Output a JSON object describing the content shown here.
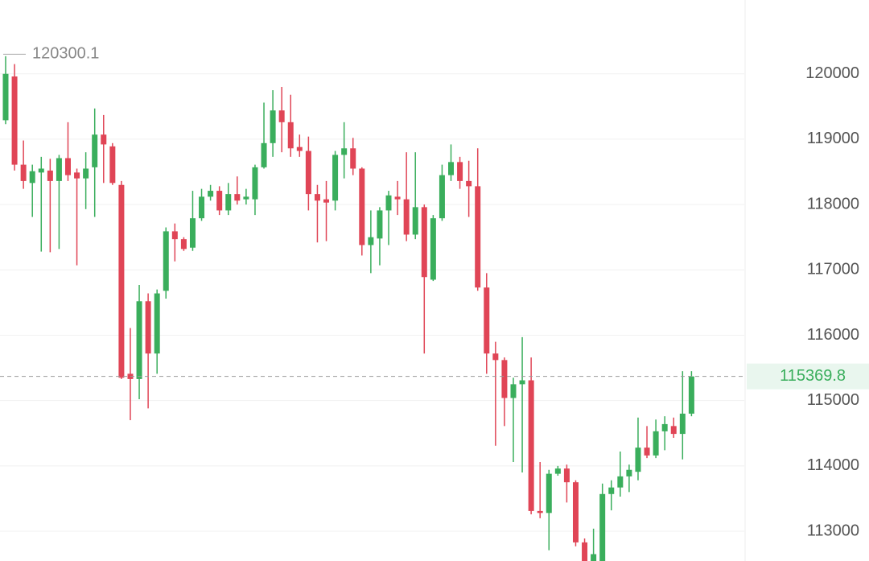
{
  "chart_data": {
    "type": "candlestick",
    "open": [
      119290,
      119960,
      118610,
      118330,
      118490,
      118520,
      118360,
      118710,
      118490,
      118400,
      118570,
      119070,
      118890,
      118300,
      115410,
      115330,
      116520,
      115720,
      116680,
      117590,
      117470,
      117340,
      117790,
      118120,
      118210,
      117910,
      118160,
      118080,
      118080,
      118570,
      118940,
      119440,
      119260,
      118880,
      118820,
      118160,
      118080,
      118060,
      118760,
      118860,
      118550,
      117380,
      117480,
      117910,
      118120,
      118080,
      117540,
      117960,
      116850,
      117790,
      118450,
      118650,
      118360,
      118280,
      116730,
      115720,
      115620,
      115040,
      115250,
      115310,
      113310,
      113280,
      113880,
      113960,
      113750,
      112830,
      112450,
      112500,
      113570,
      113670,
      113840,
      113910,
      114280,
      114160,
      114530,
      114610,
      114490,
      114800
    ],
    "high": [
      120270,
      120150,
      118980,
      118610,
      118730,
      118700,
      118760,
      119260,
      118550,
      118800,
      119470,
      119370,
      118940,
      118360,
      116110,
      116770,
      116640,
      116700,
      117650,
      117710,
      117500,
      118210,
      118240,
      118300,
      118280,
      118330,
      118430,
      118240,
      118610,
      119560,
      119750,
      119800,
      119680,
      119070,
      119040,
      118300,
      118360,
      118820,
      119260,
      119020,
      118570,
      117910,
      117960,
      118210,
      118360,
      118800,
      118800,
      118000,
      117840,
      118610,
      118920,
      118730,
      118670,
      118860,
      116950,
      115900,
      115660,
      115350,
      115970,
      115660,
      114060,
      113940,
      114000,
      114020,
      113780,
      112890,
      113040,
      113730,
      113780,
      114220,
      114020,
      114740,
      114610,
      114710,
      114760,
      114740,
      115450,
      115450
    ],
    "low": [
      119230,
      118520,
      118240,
      117810,
      117280,
      117270,
      117320,
      118360,
      117070,
      117930,
      117810,
      118330,
      118300,
      115330,
      114700,
      115020,
      114880,
      115410,
      116560,
      117130,
      117290,
      117290,
      117750,
      118060,
      117840,
      117840,
      118000,
      118000,
      117840,
      118550,
      118730,
      118800,
      118730,
      118730,
      117910,
      117420,
      117440,
      117910,
      118400,
      118450,
      117220,
      116950,
      117070,
      117380,
      117840,
      117440,
      117470,
      115720,
      116830,
      117750,
      118360,
      118240,
      117810,
      116680,
      115410,
      114310,
      114610,
      114060,
      113900,
      113260,
      113200,
      112710,
      113850,
      113440,
      112770,
      112300,
      112300,
      112400,
      113320,
      113530,
      113600,
      113780,
      114120,
      114120,
      114240,
      114430,
      114100,
      114760
    ],
    "close": [
      120000,
      118610,
      118360,
      118510,
      118550,
      118360,
      118710,
      118450,
      118400,
      118550,
      119070,
      118920,
      118330,
      115350,
      115330,
      116520,
      115720,
      116640,
      117590,
      117470,
      117320,
      117790,
      118120,
      118210,
      117910,
      118160,
      118060,
      118120,
      118570,
      118940,
      119440,
      119260,
      118860,
      118820,
      118160,
      118060,
      118030,
      118760,
      118860,
      118550,
      117380,
      117500,
      117910,
      118140,
      118080,
      117540,
      117960,
      116890,
      117790,
      118450,
      118650,
      118360,
      118280,
      116730,
      115720,
      115620,
      115040,
      115250,
      115310,
      113310,
      113280,
      113880,
      113960,
      113750,
      112830,
      112500,
      112650,
      113570,
      113670,
      113840,
      113940,
      114280,
      114160,
      114530,
      114640,
      114490,
      114800,
      115369.8
    ],
    "up_color": "#3aae5c",
    "down_color": "#e04556",
    "ylim": [
      112545,
      121130
    ],
    "yticks": [
      113000,
      114000,
      115000,
      116000,
      117000,
      118000,
      119000,
      120000
    ],
    "grid": true,
    "high_annotation": 120300.1,
    "last_price": 115369.8
  }
}
